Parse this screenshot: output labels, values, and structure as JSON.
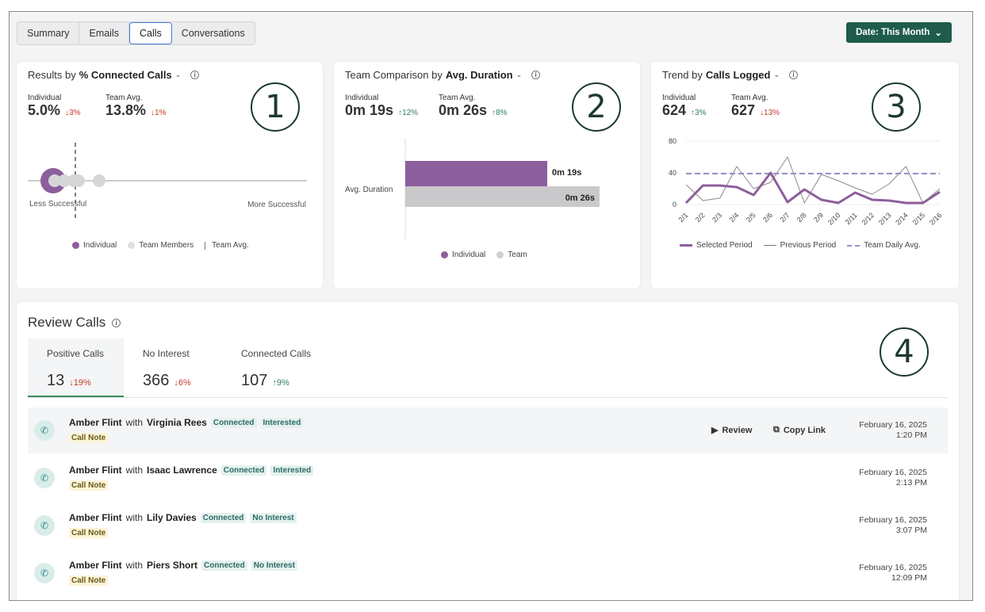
{
  "tabs": [
    "Summary",
    "Emails",
    "Calls",
    "Conversations"
  ],
  "active_tab": "Calls",
  "date_button": "Date: This Month",
  "card1": {
    "title_prefix": "Results by",
    "title_metric": "% Connected Calls",
    "individual_label": "Individual",
    "individual_value": "5.0%",
    "individual_delta": "3%",
    "team_label": "Team Avg.",
    "team_value": "13.8%",
    "team_delta": "1%",
    "left_label": "Less Successful",
    "right_label": "More Successful",
    "legend": [
      "Individual",
      "Team Members",
      "Team Avg."
    ],
    "badge": "1"
  },
  "card2": {
    "title_prefix": "Team Comparison by",
    "title_metric": "Avg. Duration",
    "individual_label": "Individual",
    "individual_value": "0m 19s",
    "individual_delta": "12%",
    "team_label": "Team Avg.",
    "team_value": "0m 26s",
    "team_delta": "8%",
    "badge": "2"
  },
  "card3": {
    "title_prefix": "Trend by",
    "title_metric": "Calls Logged",
    "individual_label": "Individual",
    "individual_value": "624",
    "individual_delta": "3%",
    "team_label": "Team Avg.",
    "team_value": "627",
    "team_delta": "13%",
    "badge": "3"
  },
  "chart_data": [
    {
      "type": "bar",
      "categories": [
        "Avg. Duration"
      ],
      "series": [
        {
          "name": "Individual",
          "values": [
            19
          ],
          "label": "0m 19s",
          "color": "#8c5f9c"
        },
        {
          "name": "Team",
          "values": [
            26
          ],
          "label": "0m 26s",
          "color": "#c9c9cb"
        }
      ],
      "orientation": "horizontal",
      "legend": "bottom"
    },
    {
      "type": "line",
      "x": [
        "2/1",
        "2/2",
        "2/3",
        "2/4",
        "2/5",
        "2/6",
        "2/7",
        "2/8",
        "2/9",
        "2/10",
        "2/11",
        "2/12",
        "2/13",
        "2/14",
        "2/15",
        "2/16"
      ],
      "ylim": [
        0,
        80
      ],
      "yticks": [
        0,
        40,
        80
      ],
      "series": [
        {
          "name": "Selected Period",
          "values": [
            2,
            24,
            24,
            22,
            12,
            40,
            3,
            19,
            6,
            2,
            15,
            6,
            5,
            2,
            2,
            16
          ],
          "color": "#8c5f9c"
        },
        {
          "name": "Previous Period",
          "values": [
            25,
            5,
            8,
            48,
            20,
            28,
            60,
            2,
            38,
            30,
            21,
            13,
            26,
            48,
            2,
            20
          ],
          "color": "#777777"
        },
        {
          "name": "Team Daily Avg.",
          "values": [
            39,
            39,
            39,
            39,
            39,
            39,
            39,
            39,
            39,
            39,
            39,
            39,
            39,
            39,
            39,
            39
          ],
          "color": "#a08cc9"
        }
      ],
      "legend": "bottom"
    }
  ],
  "review": {
    "title": "Review Calls",
    "badge": "4",
    "tabs": [
      {
        "name": "Positive Calls",
        "value": "13",
        "delta": "19%",
        "dir": "down"
      },
      {
        "name": "No Interest",
        "value": "366",
        "delta": "6%",
        "dir": "down"
      },
      {
        "name": "Connected Calls",
        "value": "107",
        "delta": "9%",
        "dir": "up"
      }
    ],
    "actions": {
      "review": "Review",
      "copy": "Copy Link"
    },
    "rows": [
      {
        "agent": "Amber Flint",
        "with": "with",
        "contact": "Virginia Rees",
        "tag1": "Connected",
        "tag2": "Interested",
        "note": "Call Note",
        "date": "February 16, 2025",
        "time": "1:20 PM"
      },
      {
        "agent": "Amber Flint",
        "with": "with",
        "contact": "Isaac Lawrence",
        "tag1": "Connected",
        "tag2": "Interested",
        "note": "Call Note",
        "date": "February 16, 2025",
        "time": "2:13 PM"
      },
      {
        "agent": "Amber Flint",
        "with": "with",
        "contact": "Lily Davies",
        "tag1": "Connected",
        "tag2": "No Interest",
        "note": "Call Note",
        "date": "February 16, 2025",
        "time": "3:07 PM"
      },
      {
        "agent": "Amber Flint",
        "with": "with",
        "contact": "Piers Short",
        "tag1": "Connected",
        "tag2": "No Interest",
        "note": "Call Note",
        "date": "February 16, 2025",
        "time": "12:09 PM"
      }
    ]
  }
}
